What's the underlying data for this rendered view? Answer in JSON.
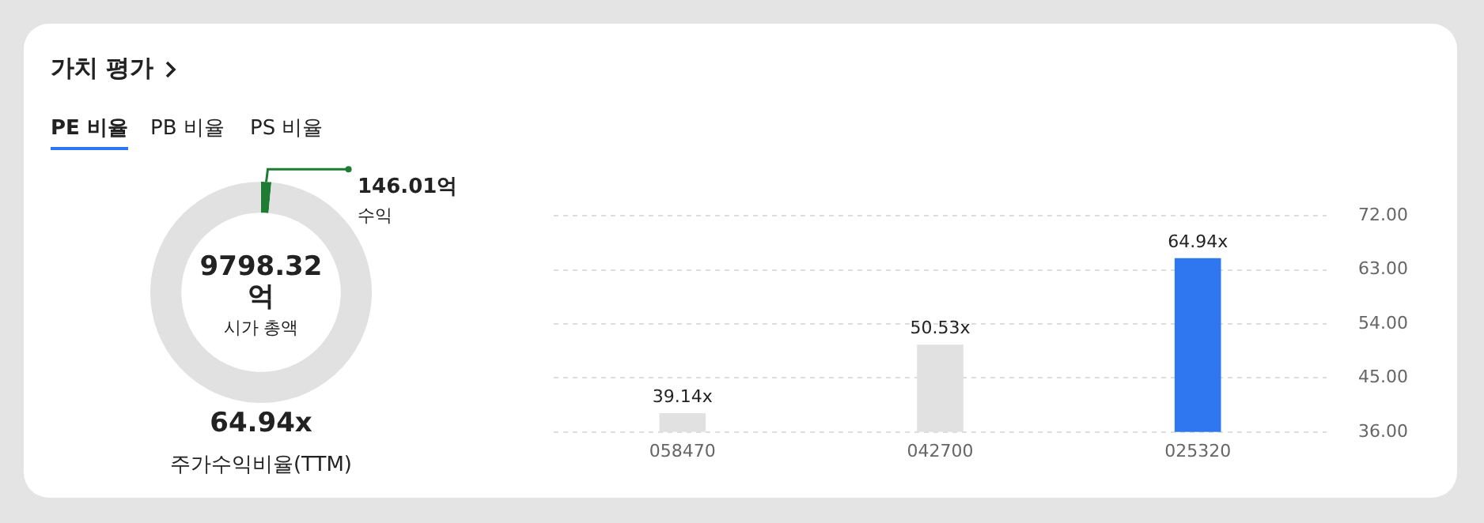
{
  "chart_data": [
    {
      "type": "donut",
      "title": "가치 평가",
      "annotations": [
        "PE 비율",
        "PB 비율",
        "PS 비율",
        "9798.32억",
        "시가 총액",
        "64.94x",
        "주가수익비율(TTM)"
      ],
      "categories": [
        "수익",
        null
      ],
      "values": [
        146.01,
        9652.31
      ],
      "colors": [
        "#1e7b34",
        "#e1e1e1"
      ],
      "value_labels": [
        "146.01억",
        null
      ]
    },
    {
      "type": "bar",
      "categories": [
        "058470",
        "042700",
        "025320"
      ],
      "values": [
        39.14,
        50.53,
        64.94
      ],
      "colors": [
        "#e1e1e1",
        "#e1e1e1",
        "#2e77f0"
      ],
      "value_labels": [
        "39.14x",
        "50.53x",
        "64.94x"
      ],
      "ylim": [
        36,
        72
      ],
      "yticks": [
        {
          "value": 36,
          "label": "36.00"
        },
        {
          "value": 45,
          "label": "45.00"
        },
        {
          "value": 54,
          "label": "54.00"
        },
        {
          "value": 63,
          "label": "63.00"
        },
        {
          "value": 72,
          "label": "72.00"
        }
      ],
      "grid": "y"
    }
  ]
}
